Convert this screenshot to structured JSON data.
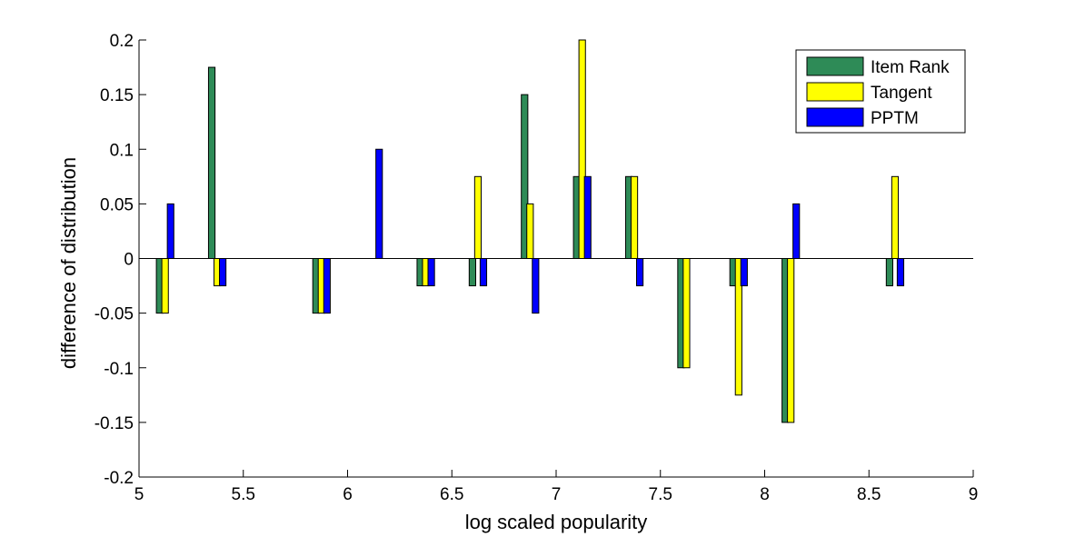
{
  "chart_data": {
    "type": "bar",
    "title": "",
    "xlabel": "log scaled popularity",
    "ylabel": "difference of distribution",
    "xlim": [
      5,
      9
    ],
    "ylim": [
      -0.2,
      0.2
    ],
    "xticks": [
      "5",
      "5.5",
      "6",
      "6.5",
      "7",
      "7.5",
      "8",
      "8.5",
      "9"
    ],
    "yticks": [
      "-0.2",
      "-0.15",
      "-0.1",
      "-0.05",
      "0",
      "0.05",
      "0.1",
      "0.15",
      "0.2"
    ],
    "grid": false,
    "legend_position": "top-right",
    "x": [
      5.125,
      5.375,
      5.625,
      5.875,
      6.125,
      6.375,
      6.625,
      6.875,
      7.125,
      7.375,
      7.625,
      7.875,
      8.125,
      8.375,
      8.625
    ],
    "series": [
      {
        "name": "Item Rank",
        "color": "#2e8b57",
        "values": [
          -0.05,
          0.175,
          0,
          -0.05,
          0,
          -0.025,
          -0.025,
          0.15,
          0.075,
          0.075,
          -0.1,
          -0.025,
          -0.15,
          0,
          -0.025
        ]
      },
      {
        "name": "Tangent",
        "color": "#ffff00",
        "values": [
          -0.05,
          -0.025,
          0,
          -0.05,
          0,
          -0.025,
          0.075,
          0.05,
          0.2,
          0.075,
          -0.1,
          -0.125,
          -0.15,
          0,
          0.075
        ]
      },
      {
        "name": "PPTM",
        "color": "#0000ff",
        "values": [
          0.05,
          -0.025,
          0,
          -0.05,
          0.1,
          -0.025,
          -0.025,
          -0.05,
          0.075,
          -0.025,
          0,
          -0.025,
          0.05,
          0,
          -0.025
        ]
      }
    ]
  }
}
